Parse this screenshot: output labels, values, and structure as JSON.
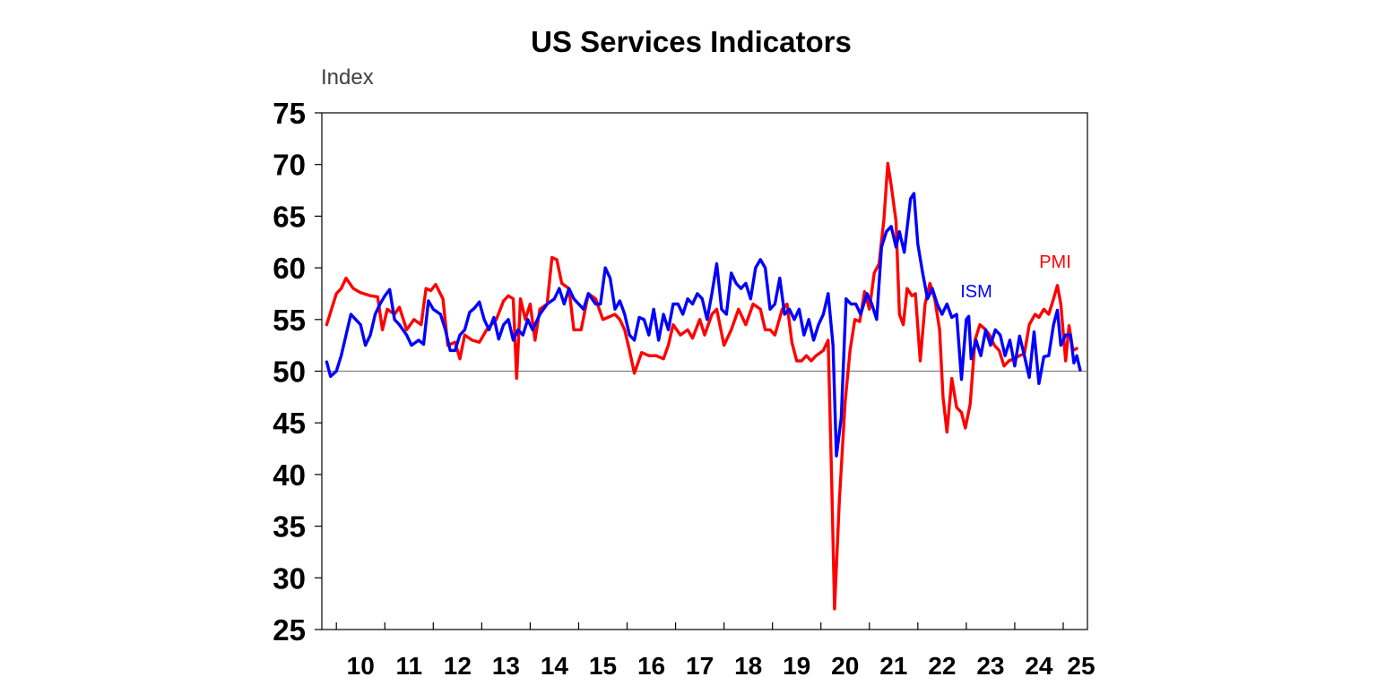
{
  "colors": {
    "pmi": "#ff0000",
    "ism": "#0000ff",
    "ref_line": "#808080",
    "axis": "#000000"
  },
  "chart_data": {
    "type": "line",
    "title": "US Services Indicators",
    "ylabel": "Index",
    "xlabel": "",
    "ylim": [
      25,
      75
    ],
    "yticks": [
      25,
      30,
      35,
      40,
      45,
      50,
      55,
      60,
      65,
      70,
      75
    ],
    "xlim": [
      2009.7,
      2025.5
    ],
    "xticks": [
      "10",
      "11",
      "12",
      "13",
      "14",
      "15",
      "16",
      "17",
      "18",
      "19",
      "20",
      "21",
      "22",
      "23",
      "24",
      "25"
    ],
    "reference_line": 50,
    "grid": false,
    "legend": "inline-labels",
    "series": [
      {
        "name": "PMI",
        "color": "#ff0000",
        "points": [
          [
            2009.8,
            54.5
          ],
          [
            2009.9,
            56
          ],
          [
            2010.0,
            57.5
          ],
          [
            2010.1,
            58
          ],
          [
            2010.2,
            59
          ],
          [
            2010.35,
            58
          ],
          [
            2010.5,
            57.6
          ],
          [
            2010.7,
            57.3
          ],
          [
            2010.85,
            57.2
          ],
          [
            2010.95,
            54
          ],
          [
            2011.05,
            56
          ],
          [
            2011.2,
            55.5
          ],
          [
            2011.3,
            56.2
          ],
          [
            2011.45,
            54
          ],
          [
            2011.6,
            55
          ],
          [
            2011.75,
            54.5
          ],
          [
            2011.85,
            58
          ],
          [
            2011.95,
            57.8
          ],
          [
            2012.05,
            58.4
          ],
          [
            2012.2,
            57
          ],
          [
            2012.3,
            52.5
          ],
          [
            2012.45,
            52.8
          ],
          [
            2012.55,
            51.2
          ],
          [
            2012.65,
            53.5
          ],
          [
            2012.8,
            53
          ],
          [
            2012.95,
            52.8
          ],
          [
            2013.1,
            54
          ],
          [
            2013.3,
            55
          ],
          [
            2013.45,
            56.8
          ],
          [
            2013.55,
            57.3
          ],
          [
            2013.65,
            57
          ],
          [
            2013.72,
            49.3
          ],
          [
            2013.8,
            57
          ],
          [
            2013.9,
            55
          ],
          [
            2014.0,
            56.5
          ],
          [
            2014.1,
            53
          ],
          [
            2014.2,
            56
          ],
          [
            2014.35,
            56.5
          ],
          [
            2014.45,
            61
          ],
          [
            2014.55,
            60.8
          ],
          [
            2014.65,
            58.5
          ],
          [
            2014.8,
            58
          ],
          [
            2014.9,
            54
          ],
          [
            2015.05,
            54
          ],
          [
            2015.2,
            57.5
          ],
          [
            2015.35,
            57
          ],
          [
            2015.5,
            55
          ],
          [
            2015.6,
            55.2
          ],
          [
            2015.75,
            55.5
          ],
          [
            2015.85,
            55
          ],
          [
            2015.95,
            54
          ],
          [
            2016.05,
            52
          ],
          [
            2016.15,
            49.8
          ],
          [
            2016.3,
            51.8
          ],
          [
            2016.45,
            51.5
          ],
          [
            2016.6,
            51.5
          ],
          [
            2016.75,
            51.2
          ],
          [
            2016.85,
            52.5
          ],
          [
            2016.95,
            54.5
          ],
          [
            2017.1,
            53.5
          ],
          [
            2017.25,
            54
          ],
          [
            2017.35,
            53.2
          ],
          [
            2017.5,
            55
          ],
          [
            2017.6,
            53.5
          ],
          [
            2017.75,
            55.5
          ],
          [
            2017.85,
            56
          ],
          [
            2018.0,
            52.5
          ],
          [
            2018.15,
            54
          ],
          [
            2018.3,
            56
          ],
          [
            2018.45,
            54.5
          ],
          [
            2018.6,
            56.5
          ],
          [
            2018.75,
            56
          ],
          [
            2018.85,
            54
          ],
          [
            2018.95,
            54
          ],
          [
            2019.05,
            53.5
          ],
          [
            2019.2,
            56
          ],
          [
            2019.3,
            56.5
          ],
          [
            2019.4,
            52.8
          ],
          [
            2019.5,
            51
          ],
          [
            2019.6,
            51
          ],
          [
            2019.7,
            51.5
          ],
          [
            2019.8,
            51
          ],
          [
            2019.9,
            51.5
          ],
          [
            2020.05,
            52
          ],
          [
            2020.15,
            53
          ],
          [
            2020.22,
            39.8
          ],
          [
            2020.28,
            27
          ],
          [
            2020.38,
            37.5
          ],
          [
            2020.5,
            47
          ],
          [
            2020.6,
            52
          ],
          [
            2020.7,
            55
          ],
          [
            2020.8,
            54.8
          ],
          [
            2020.9,
            57.7
          ],
          [
            2021.0,
            56
          ],
          [
            2021.1,
            59.5
          ],
          [
            2021.2,
            60.4
          ],
          [
            2021.3,
            64.7
          ],
          [
            2021.38,
            70.1
          ],
          [
            2021.45,
            68
          ],
          [
            2021.55,
            64.5
          ],
          [
            2021.62,
            55.5
          ],
          [
            2021.7,
            54.5
          ],
          [
            2021.78,
            58
          ],
          [
            2021.88,
            57.3
          ],
          [
            2021.95,
            57.5
          ],
          [
            2022.05,
            51
          ],
          [
            2022.15,
            56.5
          ],
          [
            2022.25,
            58.5
          ],
          [
            2022.35,
            57
          ],
          [
            2022.45,
            54
          ],
          [
            2022.52,
            47.5
          ],
          [
            2022.6,
            44.1
          ],
          [
            2022.7,
            49.3
          ],
          [
            2022.8,
            46.5
          ],
          [
            2022.9,
            46
          ],
          [
            2022.98,
            44.5
          ],
          [
            2023.08,
            46.8
          ],
          [
            2023.18,
            53
          ],
          [
            2023.28,
            54.5
          ],
          [
            2023.38,
            54.1
          ],
          [
            2023.48,
            53.5
          ],
          [
            2023.58,
            52.5
          ],
          [
            2023.68,
            52
          ],
          [
            2023.78,
            50.5
          ],
          [
            2023.88,
            51
          ],
          [
            2023.98,
            51.2
          ],
          [
            2024.1,
            51.5
          ],
          [
            2024.2,
            51.7
          ],
          [
            2024.3,
            54.5
          ],
          [
            2024.42,
            55.5
          ],
          [
            2024.5,
            55.2
          ],
          [
            2024.6,
            56
          ],
          [
            2024.7,
            55.5
          ],
          [
            2024.8,
            57
          ],
          [
            2024.88,
            58.3
          ],
          [
            2024.95,
            56.5
          ],
          [
            2025.05,
            51
          ],
          [
            2025.12,
            54.4
          ],
          [
            2025.2,
            52
          ],
          [
            2025.28,
            52.2
          ]
        ]
      },
      {
        "name": "ISM",
        "color": "#0000ff",
        "points": [
          [
            2009.8,
            50.9
          ],
          [
            2009.88,
            49.5
          ],
          [
            2010.0,
            50
          ],
          [
            2010.1,
            51.5
          ],
          [
            2010.2,
            53.5
          ],
          [
            2010.3,
            55.5
          ],
          [
            2010.4,
            55
          ],
          [
            2010.5,
            54.5
          ],
          [
            2010.6,
            52.5
          ],
          [
            2010.7,
            53.5
          ],
          [
            2010.8,
            55.5
          ],
          [
            2010.9,
            56.5
          ],
          [
            2011.0,
            57.3
          ],
          [
            2011.1,
            57.9
          ],
          [
            2011.2,
            55
          ],
          [
            2011.3,
            54.5
          ],
          [
            2011.45,
            53.5
          ],
          [
            2011.55,
            52.5
          ],
          [
            2011.7,
            53
          ],
          [
            2011.8,
            52.6
          ],
          [
            2011.9,
            56.8
          ],
          [
            2012.0,
            56
          ],
          [
            2012.15,
            55.5
          ],
          [
            2012.25,
            54
          ],
          [
            2012.35,
            52
          ],
          [
            2012.45,
            52
          ],
          [
            2012.55,
            53.5
          ],
          [
            2012.65,
            54
          ],
          [
            2012.75,
            55.7
          ],
          [
            2012.85,
            56.1
          ],
          [
            2012.95,
            56.7
          ],
          [
            2013.05,
            55
          ],
          [
            2013.15,
            54
          ],
          [
            2013.25,
            55.2
          ],
          [
            2013.35,
            53.1
          ],
          [
            2013.45,
            54.5
          ],
          [
            2013.55,
            55
          ],
          [
            2013.65,
            53
          ],
          [
            2013.75,
            54
          ],
          [
            2013.85,
            53.5
          ],
          [
            2013.95,
            55
          ],
          [
            2014.05,
            54
          ],
          [
            2014.2,
            55.5
          ],
          [
            2014.35,
            56.5
          ],
          [
            2014.5,
            57
          ],
          [
            2014.6,
            58
          ],
          [
            2014.7,
            56.5
          ],
          [
            2014.8,
            58
          ],
          [
            2014.9,
            57
          ],
          [
            2015.0,
            56.5
          ],
          [
            2015.1,
            56
          ],
          [
            2015.2,
            57.5
          ],
          [
            2015.35,
            56.5
          ],
          [
            2015.45,
            56.5
          ],
          [
            2015.55,
            60
          ],
          [
            2015.65,
            59
          ],
          [
            2015.75,
            56
          ],
          [
            2015.85,
            56.8
          ],
          [
            2015.95,
            55.5
          ],
          [
            2016.05,
            53.5
          ],
          [
            2016.15,
            53
          ],
          [
            2016.25,
            55.2
          ],
          [
            2016.35,
            55
          ],
          [
            2016.45,
            53.5
          ],
          [
            2016.55,
            56
          ],
          [
            2016.65,
            53
          ],
          [
            2016.75,
            55.5
          ],
          [
            2016.85,
            54
          ],
          [
            2016.95,
            56.5
          ],
          [
            2017.05,
            56.5
          ],
          [
            2017.15,
            55.5
          ],
          [
            2017.25,
            57
          ],
          [
            2017.35,
            56.5
          ],
          [
            2017.45,
            57.5
          ],
          [
            2017.55,
            57
          ],
          [
            2017.65,
            55
          ],
          [
            2017.75,
            57.5
          ],
          [
            2017.85,
            60.4
          ],
          [
            2017.95,
            56
          ],
          [
            2018.05,
            55.5
          ],
          [
            2018.15,
            59.5
          ],
          [
            2018.25,
            58.5
          ],
          [
            2018.35,
            58
          ],
          [
            2018.45,
            58.5
          ],
          [
            2018.55,
            57
          ],
          [
            2018.65,
            60
          ],
          [
            2018.75,
            60.8
          ],
          [
            2018.85,
            60
          ],
          [
            2018.95,
            56
          ],
          [
            2019.05,
            56.5
          ],
          [
            2019.15,
            59
          ],
          [
            2019.25,
            55.5
          ],
          [
            2019.35,
            56
          ],
          [
            2019.45,
            55
          ],
          [
            2019.55,
            56
          ],
          [
            2019.65,
            53.5
          ],
          [
            2019.75,
            55
          ],
          [
            2019.85,
            53
          ],
          [
            2019.95,
            54.5
          ],
          [
            2020.05,
            55.5
          ],
          [
            2020.15,
            57.5
          ],
          [
            2020.25,
            52.5
          ],
          [
            2020.32,
            41.8
          ],
          [
            2020.42,
            45.5
          ],
          [
            2020.52,
            57
          ],
          [
            2020.62,
            56.5
          ],
          [
            2020.72,
            56.5
          ],
          [
            2020.82,
            55.5
          ],
          [
            2020.95,
            57.5
          ],
          [
            2021.05,
            56.5
          ],
          [
            2021.15,
            55
          ],
          [
            2021.25,
            62
          ],
          [
            2021.35,
            63.5
          ],
          [
            2021.45,
            64
          ],
          [
            2021.55,
            62
          ],
          [
            2021.62,
            63.5
          ],
          [
            2021.72,
            61.5
          ],
          [
            2021.85,
            66.7
          ],
          [
            2021.92,
            67.2
          ],
          [
            2022.0,
            62.3
          ],
          [
            2022.1,
            59.5
          ],
          [
            2022.2,
            57
          ],
          [
            2022.3,
            58
          ],
          [
            2022.4,
            56.5
          ],
          [
            2022.5,
            55.5
          ],
          [
            2022.6,
            56.5
          ],
          [
            2022.7,
            55.2
          ],
          [
            2022.8,
            55.5
          ],
          [
            2022.9,
            49.2
          ],
          [
            2023.0,
            55
          ],
          [
            2023.05,
            55.3
          ],
          [
            2023.1,
            51.2
          ],
          [
            2023.2,
            53
          ],
          [
            2023.3,
            51.5
          ],
          [
            2023.4,
            54
          ],
          [
            2023.5,
            52.5
          ],
          [
            2023.6,
            54
          ],
          [
            2023.7,
            53.5
          ],
          [
            2023.8,
            51.5
          ],
          [
            2023.9,
            53
          ],
          [
            2024.0,
            50.5
          ],
          [
            2024.1,
            53.4
          ],
          [
            2024.2,
            51.5
          ],
          [
            2024.3,
            49.4
          ],
          [
            2024.4,
            53.8
          ],
          [
            2024.5,
            48.8
          ],
          [
            2024.6,
            51.4
          ],
          [
            2024.7,
            51.5
          ],
          [
            2024.8,
            54.5
          ],
          [
            2024.88,
            55.9
          ],
          [
            2024.95,
            52.5
          ],
          [
            2025.05,
            53.5
          ],
          [
            2025.15,
            53.5
          ],
          [
            2025.22,
            50.8
          ],
          [
            2025.28,
            51.5
          ],
          [
            2025.35,
            50.1
          ]
        ]
      }
    ]
  }
}
